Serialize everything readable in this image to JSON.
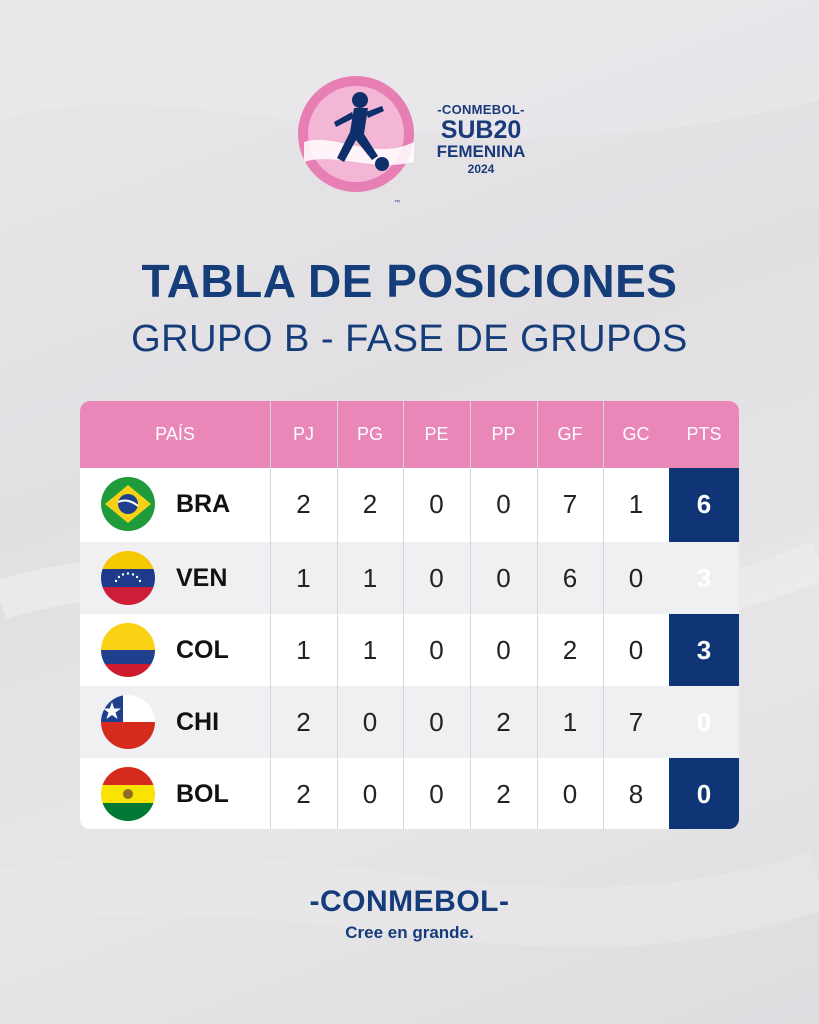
{
  "logo": {
    "brand": "-CONMEBOL-",
    "sub20": "SUB20",
    "femenina": "FEMENINA",
    "year": "2024",
    "tm": "™"
  },
  "title": "TABLA DE POSICIONES",
  "subtitle": "GRUPO B - FASE DE GRUPOS",
  "table": {
    "headers": [
      "PAÍS",
      "PJ",
      "PG",
      "PE",
      "PP",
      "GF",
      "GC",
      "PTS"
    ],
    "rows": [
      {
        "code": "BRA",
        "flag": "brazil-flag",
        "pj": "2",
        "pg": "2",
        "pe": "0",
        "pp": "0",
        "gf": "7",
        "gc": "1",
        "pts": "6"
      },
      {
        "code": "VEN",
        "flag": "venezuela-flag",
        "pj": "1",
        "pg": "1",
        "pe": "0",
        "pp": "0",
        "gf": "6",
        "gc": "0",
        "pts": "3"
      },
      {
        "code": "COL",
        "flag": "colombia-flag",
        "pj": "1",
        "pg": "1",
        "pe": "0",
        "pp": "0",
        "gf": "2",
        "gc": "0",
        "pts": "3"
      },
      {
        "code": "CHI",
        "flag": "chile-flag",
        "pj": "2",
        "pg": "0",
        "pe": "0",
        "pp": "2",
        "gf": "1",
        "gc": "7",
        "pts": "0"
      },
      {
        "code": "BOL",
        "flag": "bolivia-flag",
        "pj": "2",
        "pg": "0",
        "pe": "0",
        "pp": "2",
        "gf": "0",
        "gc": "8",
        "pts": "0"
      }
    ]
  },
  "footer": {
    "brand": "-CONMEBOL-",
    "tagline": "Cree en grande."
  },
  "colors": {
    "navy": "#153d7a",
    "pink": "#e987b9",
    "pts_bg": "#0f3576"
  }
}
